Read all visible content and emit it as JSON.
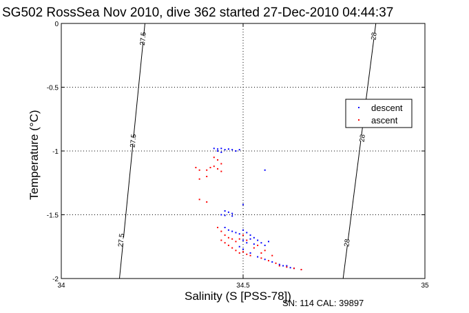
{
  "chart_data": {
    "type": "scatter",
    "title": "SG502 RossSea Nov 2010, dive 362 started 27-Dec-2010 04:44:37",
    "xlabel": "Salinity (S [PSS-78])",
    "ylabel": "Temperature (°C)",
    "xlim": [
      34,
      35
    ],
    "ylim": [
      -2,
      0
    ],
    "y_reversed": true,
    "x_ticks": [
      "34",
      "34.5",
      "35"
    ],
    "y_ticks": [
      "0",
      "-0.5",
      "-1",
      "-1.5",
      "-2"
    ],
    "grid": "dotted",
    "legend_position": "top-right",
    "series": [
      {
        "name": "descent",
        "color": "#0000ff",
        "points": [
          [
            34.42,
            -0.98
          ],
          [
            34.43,
            -0.985
          ],
          [
            34.44,
            -0.98
          ],
          [
            34.45,
            -0.99
          ],
          [
            34.46,
            -0.985
          ],
          [
            34.47,
            -0.99
          ],
          [
            34.48,
            -1.0
          ],
          [
            34.49,
            -0.99
          ],
          [
            34.43,
            -1.0
          ],
          [
            34.44,
            -1.01
          ],
          [
            34.56,
            -1.15
          ],
          [
            34.5,
            -1.42
          ],
          [
            34.45,
            -1.47
          ],
          [
            34.46,
            -1.48
          ],
          [
            34.47,
            -1.49
          ],
          [
            34.44,
            -1.5
          ],
          [
            34.45,
            -1.505
          ],
          [
            34.47,
            -1.51
          ],
          [
            34.45,
            -1.6
          ],
          [
            34.46,
            -1.62
          ],
          [
            34.47,
            -1.63
          ],
          [
            34.48,
            -1.64
          ],
          [
            34.49,
            -1.65
          ],
          [
            34.5,
            -1.62
          ],
          [
            34.51,
            -1.64
          ],
          [
            34.52,
            -1.66
          ],
          [
            34.53,
            -1.68
          ],
          [
            34.54,
            -1.7
          ],
          [
            34.55,
            -1.72
          ],
          [
            34.56,
            -1.74
          ],
          [
            34.57,
            -1.71
          ],
          [
            34.5,
            -1.7
          ],
          [
            34.51,
            -1.72
          ],
          [
            34.52,
            -1.69
          ],
          [
            34.53,
            -1.73
          ],
          [
            34.49,
            -1.75
          ],
          [
            34.5,
            -1.77
          ],
          [
            34.52,
            -1.8
          ],
          [
            34.54,
            -1.83
          ],
          [
            34.56,
            -1.85
          ],
          [
            34.58,
            -1.87
          ],
          [
            34.6,
            -1.89
          ],
          [
            34.62,
            -1.9
          ],
          [
            34.64,
            -1.92
          ],
          [
            34.66,
            -1.93
          ],
          [
            34.63,
            -1.915
          ],
          [
            34.61,
            -1.9
          ]
        ]
      },
      {
        "name": "ascent",
        "color": "#ff0000",
        "points": [
          [
            34.37,
            -1.13
          ],
          [
            34.38,
            -1.15
          ],
          [
            34.4,
            -1.15
          ],
          [
            34.41,
            -1.13
          ],
          [
            34.42,
            -1.05
          ],
          [
            34.43,
            -1.07
          ],
          [
            34.44,
            -1.1
          ],
          [
            34.42,
            -1.12
          ],
          [
            34.43,
            -1.14
          ],
          [
            34.44,
            -1.16
          ],
          [
            34.38,
            -1.22
          ],
          [
            34.4,
            -1.2
          ],
          [
            34.38,
            -1.38
          ],
          [
            34.4,
            -1.4
          ],
          [
            34.43,
            -1.6
          ],
          [
            34.44,
            -1.63
          ],
          [
            34.45,
            -1.66
          ],
          [
            34.46,
            -1.68
          ],
          [
            34.44,
            -1.7
          ],
          [
            34.45,
            -1.72
          ],
          [
            34.46,
            -1.74
          ],
          [
            34.47,
            -1.76
          ],
          [
            34.48,
            -1.78
          ],
          [
            34.49,
            -1.8
          ],
          [
            34.5,
            -1.79
          ],
          [
            34.51,
            -1.81
          ],
          [
            34.52,
            -1.82
          ],
          [
            34.48,
            -1.71
          ],
          [
            34.47,
            -1.69
          ],
          [
            34.49,
            -1.69
          ],
          [
            34.5,
            -1.66
          ],
          [
            34.51,
            -1.7
          ],
          [
            34.53,
            -1.76
          ],
          [
            34.55,
            -1.8
          ],
          [
            34.55,
            -1.84
          ],
          [
            34.57,
            -1.86
          ],
          [
            34.59,
            -1.88
          ],
          [
            34.6,
            -1.9
          ],
          [
            34.62,
            -1.91
          ],
          [
            34.64,
            -1.92
          ],
          [
            34.66,
            -1.93
          ],
          [
            34.54,
            -1.74
          ],
          [
            34.56,
            -1.78
          ],
          [
            34.58,
            -1.82
          ]
        ]
      }
    ],
    "contours": [
      {
        "label": "27.5",
        "points": [
          [
            34.23,
            0
          ],
          [
            34.16,
            -2
          ]
        ],
        "label_positions": [
          [
            34.225,
            -0.12
          ],
          [
            34.198,
            -0.92
          ],
          [
            34.165,
            -1.7
          ]
        ]
      },
      {
        "label": "28",
        "points": [
          [
            34.865,
            0
          ],
          [
            34.775,
            -2
          ]
        ],
        "label_positions": [
          [
            34.86,
            -0.1
          ],
          [
            34.828,
            -0.9
          ],
          [
            34.786,
            -1.72
          ]
        ]
      }
    ]
  },
  "footer": {
    "serial_calibration": "SN: 114  CAL: 39897"
  }
}
